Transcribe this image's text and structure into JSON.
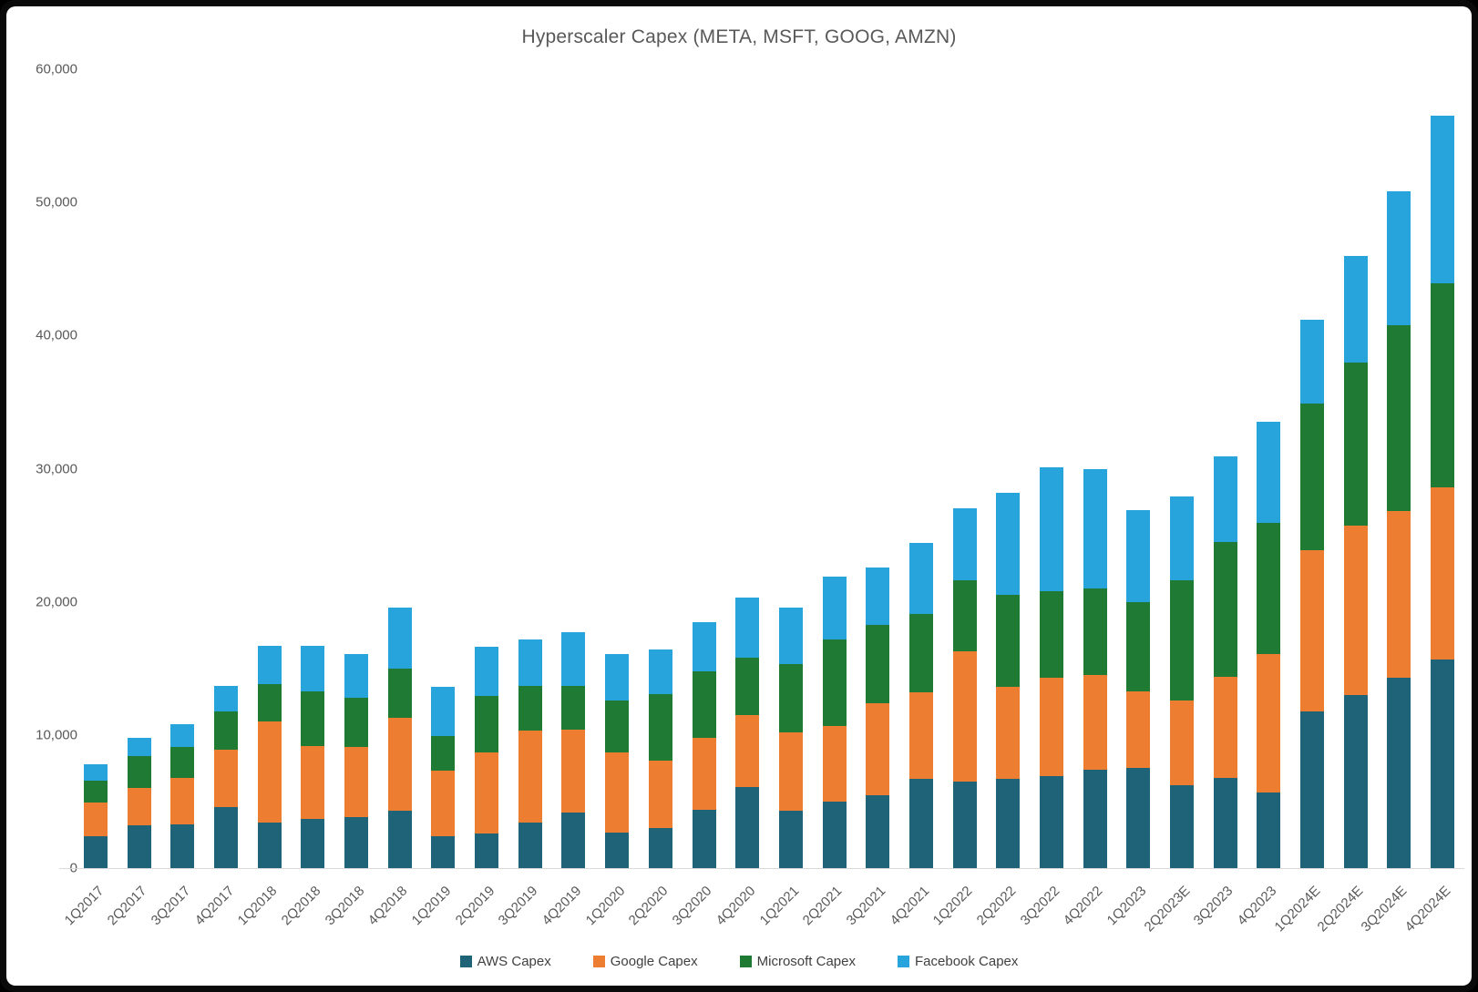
{
  "window": {
    "background": "#0a0a0a",
    "panel_background": "#ffffff"
  },
  "chart_data": {
    "type": "bar",
    "stacked": true,
    "title": "Hyperscaler Capex (META, MSFT, GOOG, AMZN)",
    "xlabel": "",
    "ylabel": "",
    "ylim": [
      0,
      60000
    ],
    "y_ticks": [
      0,
      10000,
      20000,
      30000,
      40000,
      50000,
      60000
    ],
    "y_tick_labels": [
      "0",
      "10,000",
      "20,000",
      "30,000",
      "40,000",
      "50,000",
      "60,000"
    ],
    "grid": false,
    "legend_position": "bottom",
    "text_color": "#595959",
    "axis_line_color": "#D9D9D9",
    "categories": [
      "1Q2017",
      "2Q2017",
      "3Q2017",
      "4Q2017",
      "1Q2018",
      "2Q2018",
      "3Q2018",
      "4Q2018",
      "1Q2019",
      "2Q2019",
      "3Q2019",
      "4Q2019",
      "1Q2020",
      "2Q2020",
      "3Q2020",
      "4Q2020",
      "1Q2021",
      "2Q2021",
      "3Q2021",
      "4Q2021",
      "1Q2022",
      "2Q2022",
      "3Q2022",
      "4Q2022",
      "1Q2023",
      "2Q2023E",
      "3Q2023",
      "4Q2023",
      "1Q2024E",
      "2Q2024E",
      "3Q2024E",
      "4Q2024E"
    ],
    "series": [
      {
        "name": "AWS Capex",
        "color": "#1F6379",
        "values": [
          2400,
          3200,
          3300,
          4600,
          3400,
          3700,
          3800,
          4300,
          2400,
          2600,
          3400,
          4200,
          2700,
          3000,
          4400,
          6100,
          4300,
          5000,
          5500,
          6700,
          6500,
          6700,
          6900,
          7400,
          7500,
          6200,
          6800,
          5700,
          11800,
          13000,
          14300,
          15700
        ]
      },
      {
        "name": "Google Capex",
        "color": "#ED7D31",
        "values": [
          2500,
          2800,
          3500,
          4300,
          7600,
          5500,
          5300,
          7000,
          4900,
          6100,
          6900,
          6200,
          6000,
          5100,
          5400,
          5400,
          5900,
          5700,
          6900,
          6500,
          9800,
          6900,
          7400,
          7100,
          5800,
          6400,
          7600,
          10400,
          12100,
          12700,
          12500,
          12900
        ]
      },
      {
        "name": "Microsoft Capex",
        "color": "#1F7B34",
        "values": [
          1700,
          2400,
          2300,
          2900,
          2800,
          4100,
          3700,
          3700,
          2600,
          4200,
          3400,
          3300,
          3900,
          5000,
          5000,
          4300,
          5100,
          6500,
          5900,
          5900,
          5300,
          6900,
          6500,
          6500,
          6700,
          9000,
          10100,
          9800,
          11000,
          12300,
          14000,
          15300
        ]
      },
      {
        "name": "Facebook Capex",
        "color": "#27A4DC",
        "values": [
          1200,
          1400,
          1700,
          1900,
          2900,
          3400,
          3300,
          4600,
          3700,
          3700,
          3500,
          4000,
          3500,
          3300,
          3700,
          4500,
          4300,
          4700,
          4300,
          5300,
          5400,
          7700,
          9300,
          9000,
          6900,
          6300,
          6400,
          7600,
          6300,
          8000,
          10000,
          12600
        ]
      }
    ]
  }
}
